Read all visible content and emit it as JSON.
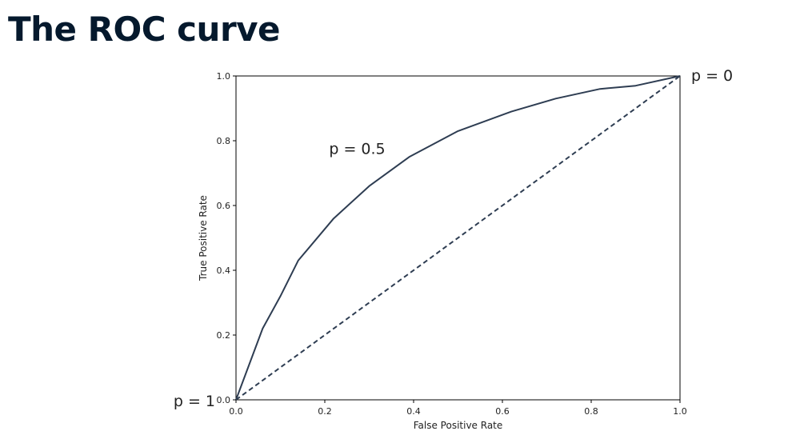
{
  "slide": {
    "title": "The ROC curve"
  },
  "chart_data": {
    "type": "line",
    "xlabel": "False Positive Rate",
    "ylabel": "True Positive Rate",
    "xlim": [
      0.0,
      1.0
    ],
    "ylim": [
      0.0,
      1.0
    ],
    "xticks": [
      "0.0",
      "0.2",
      "0.4",
      "0.6",
      "0.8",
      "1.0"
    ],
    "yticks": [
      "0.0",
      "0.2",
      "0.4",
      "0.6",
      "0.8",
      "1.0"
    ],
    "grid": false,
    "series": [
      {
        "style": "solid",
        "color": "#2e3d52",
        "x": [
          0.0,
          0.06,
          0.1,
          0.14,
          0.22,
          0.3,
          0.39,
          0.5,
          0.62,
          0.72,
          0.82,
          0.9,
          1.0
        ],
        "y": [
          0.0,
          0.22,
          0.32,
          0.43,
          0.56,
          0.66,
          0.75,
          0.83,
          0.89,
          0.93,
          0.96,
          0.97,
          1.0
        ]
      },
      {
        "style": "dashed",
        "color": "#2e3d52",
        "x": [
          0.0,
          1.0
        ],
        "y": [
          0.0,
          1.0
        ]
      }
    ],
    "annotations": [
      {
        "text": "p = 0",
        "x": 1.0,
        "y": 1.0
      },
      {
        "text": "p = 0.5",
        "x": 0.3,
        "y": 0.74
      },
      {
        "text": "p = 1",
        "x": 0.0,
        "y": 0.0
      }
    ]
  }
}
